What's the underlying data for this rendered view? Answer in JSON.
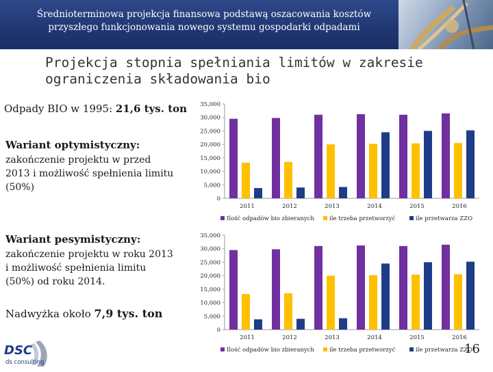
{
  "header": {
    "title_line1": "Średnioterminowa projekcja finansowa podstawą oszacowania kosztów",
    "title_line2": "przyszłego funkcjonowania nowego systemu gospodarki odpadami"
  },
  "slide": {
    "title_line1": "Projekcja stopnia spełniania limitów w zakresie",
    "title_line2": "ograniczenia składowania bio",
    "bio_1995_label": "Odpady BIO w 1995: ",
    "bio_1995_value": "21,6 tys. ton",
    "optimistic_heading": "Wariant optymistyczny:",
    "optimistic_text": "zakończenie projektu w przed 2013 i możliwość spełnienia limitu (50%)",
    "pessimistic_heading": "Wariant pesymistyczny:",
    "pessimistic_text": "zakończenie projektu w roku 2013 i możliwość spełnienia limitu (50%) od roku 2014.",
    "surplus_label": "Nadwyżka około ",
    "surplus_value": "7,9 tys. ton",
    "page_number": "16"
  },
  "logo": {
    "brand": "DSC",
    "sub": "ds consulting"
  },
  "colors": {
    "series1": "#7030a0",
    "series2": "#ffc000",
    "series3": "#1f3c88",
    "header_bg": "#1f3672"
  },
  "chart_data": [
    {
      "type": "bar",
      "title": "Wariant optymistyczny",
      "categories": [
        "2011",
        "2012",
        "2013",
        "2014",
        "2015",
        "2016"
      ],
      "ylim": [
        0,
        35000
      ],
      "yticks": [
        "0",
        "5,000",
        "10,000",
        "15,000",
        "20,000",
        "25,000",
        "30,000",
        "35,000"
      ],
      "series": [
        {
          "name": "Ilość odpadów bio zbieranych",
          "values": [
            29500,
            29800,
            31000,
            31200,
            31000,
            31500
          ]
        },
        {
          "name": "ile trzeba przetworzyć",
          "values": [
            13200,
            13500,
            20000,
            20200,
            20400,
            20500
          ]
        },
        {
          "name": "ile przetwarza ZZO",
          "values": [
            3800,
            4000,
            4200,
            24500,
            25000,
            25200
          ]
        }
      ]
    },
    {
      "type": "bar",
      "title": "Wariant pesymistyczny",
      "categories": [
        "2011",
        "2012",
        "2013",
        "2014",
        "2015",
        "2016"
      ],
      "ylim": [
        0,
        35000
      ],
      "yticks": [
        "0",
        "5,000",
        "10,000",
        "15,000",
        "20,000",
        "25,000",
        "30,000",
        "35,000"
      ],
      "series": [
        {
          "name": "Ilość odpadów bio zbieranych",
          "values": [
            29500,
            29800,
            31000,
            31200,
            31000,
            31500
          ]
        },
        {
          "name": "ile trzeba przetworzyć",
          "values": [
            13200,
            13500,
            20000,
            20200,
            20400,
            20500
          ]
        },
        {
          "name": "ile przetwarza ZZO",
          "values": [
            3800,
            4000,
            4200,
            24500,
            25000,
            25200
          ]
        }
      ]
    }
  ]
}
